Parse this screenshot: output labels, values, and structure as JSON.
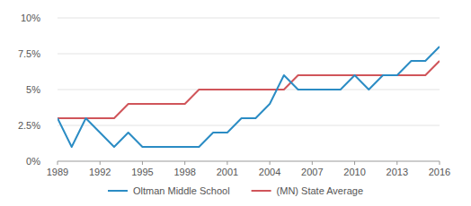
{
  "chart_data": {
    "type": "line",
    "x": [
      1989,
      1990,
      1991,
      1992,
      1993,
      1994,
      1995,
      1996,
      1997,
      1998,
      1999,
      2000,
      2001,
      2002,
      2003,
      2004,
      2005,
      2006,
      2007,
      2008,
      2009,
      2010,
      2011,
      2012,
      2013,
      2014,
      2015,
      2016
    ],
    "series": [
      {
        "name": "Oltman Middle School",
        "color": "#2b8cc4",
        "values": [
          3,
          1,
          3,
          2,
          1,
          2,
          1,
          1,
          1,
          1,
          1,
          2,
          2,
          3,
          3,
          4,
          6,
          5,
          5,
          5,
          5,
          6,
          5,
          6,
          6,
          7,
          7,
          8
        ]
      },
      {
        "name": "(MN) State Average",
        "color": "#d0555a",
        "values": [
          3,
          3,
          3,
          3,
          3,
          4,
          4,
          4,
          4,
          4,
          5,
          5,
          5,
          5,
          5,
          5,
          5,
          6,
          6,
          6,
          6,
          6,
          6,
          6,
          6,
          6,
          6,
          7
        ]
      }
    ],
    "xlim": [
      1989,
      2016
    ],
    "xticks": [
      1989,
      1992,
      1995,
      1998,
      2001,
      2004,
      2007,
      2010,
      2013,
      2016
    ],
    "ylim": [
      0,
      10
    ],
    "yticks": [
      {
        "value": 0,
        "label": "0%"
      },
      {
        "value": 2.5,
        "label": "2.5%"
      },
      {
        "value": 5,
        "label": "5%"
      },
      {
        "value": 7.5,
        "label": "7.5%"
      },
      {
        "value": 10,
        "label": "10%"
      }
    ],
    "grid": true,
    "legend": "bottom"
  }
}
